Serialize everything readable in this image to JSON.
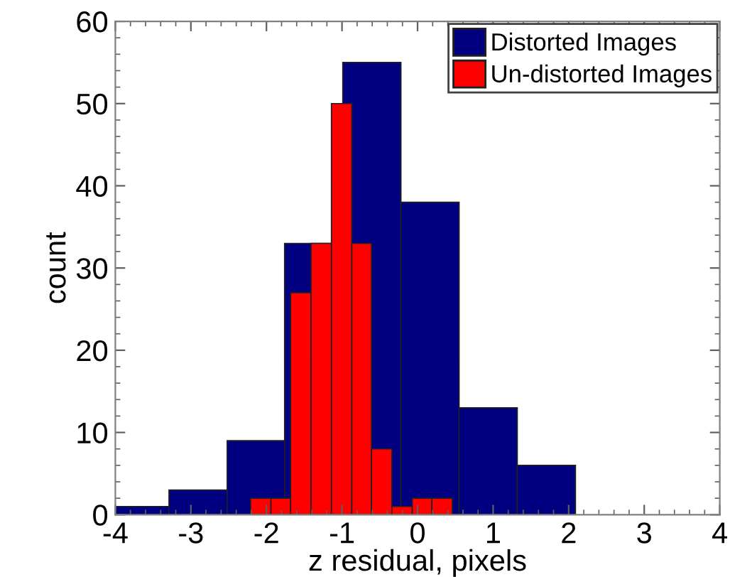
{
  "chart_data": {
    "type": "histogram",
    "xlabel": "z residual, pixels",
    "ylabel": "count",
    "xlim": [
      -4,
      4
    ],
    "xticks": [
      -4,
      -3,
      -2,
      -1,
      0,
      1,
      2,
      3,
      4
    ],
    "ylim": [
      0,
      60
    ],
    "yticks": [
      0,
      10,
      20,
      30,
      40,
      50,
      60
    ],
    "grid": false,
    "legend": "top right",
    "bins": [
      -4.0,
      -3.29,
      -2.52,
      -1.76,
      -0.99,
      -0.22,
      0.55,
      1.32,
      2.09
    ],
    "series": [
      {
        "name": "Distorted Images",
        "color": "#000080",
        "values": [
          1,
          3,
          9,
          33,
          55,
          38,
          13,
          6
        ]
      },
      {
        "name": "Un-distorted Images",
        "color": "#ff0000",
        "bins": [
          -2.21,
          -1.94,
          -1.68,
          -1.41,
          -1.14,
          -0.87,
          -0.61,
          -0.34,
          -0.07,
          0.19,
          0.46
        ],
        "values": [
          2,
          2,
          27,
          33,
          50,
          33,
          8,
          1,
          2,
          2
        ]
      }
    ]
  }
}
